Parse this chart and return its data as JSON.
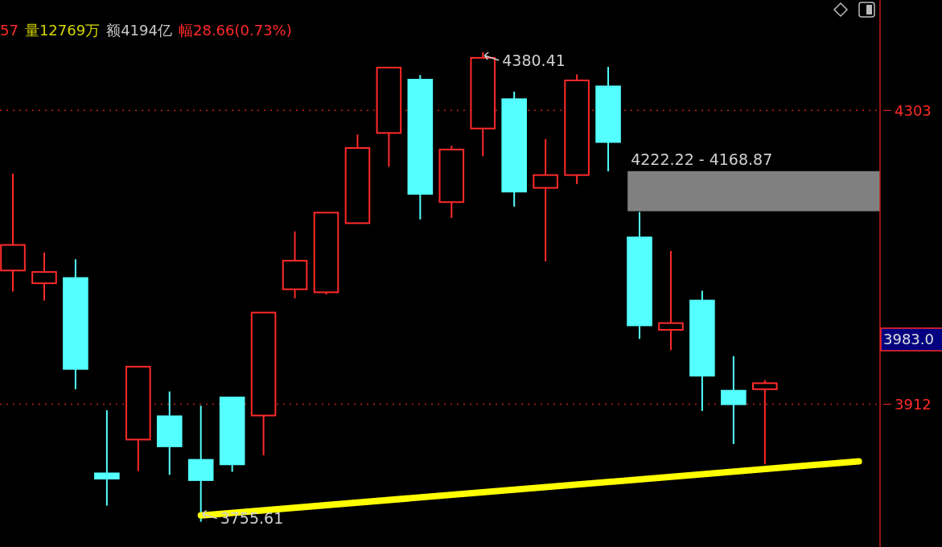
{
  "chart_data": {
    "type": "candlestick",
    "categories": [
      null,
      null,
      null,
      null,
      null,
      null,
      null,
      null,
      null,
      null,
      null,
      null,
      null,
      null,
      null,
      null,
      null,
      null,
      null,
      null,
      null,
      null,
      null,
      null,
      null,
      null,
      null,
      null
    ],
    "ohlc": [
      [
        4090,
        4219,
        4062,
        4124
      ],
      [
        4073,
        4114,
        4050,
        4088
      ],
      [
        4080,
        4105,
        3932,
        3959
      ],
      [
        3820,
        3904,
        3777,
        3813
      ],
      [
        3865,
        3962,
        3823,
        3962
      ],
      [
        3896,
        3929,
        3818,
        3856
      ],
      [
        3838,
        3910,
        3755.61,
        3811
      ],
      [
        3921,
        3921,
        3822,
        3832
      ],
      [
        3897,
        4034,
        3844,
        4034
      ],
      [
        4065,
        4142,
        4053,
        4103
      ],
      [
        4061,
        4167,
        4058,
        4167
      ],
      [
        4153,
        4271,
        4153,
        4253
      ],
      [
        4273,
        4360,
        4228,
        4360
      ],
      [
        4344,
        4350,
        4158,
        4192
      ],
      [
        4181,
        4256,
        4160,
        4251
      ],
      [
        4279,
        4380.41,
        4242,
        4373
      ],
      [
        4318,
        4328,
        4175,
        4195
      ],
      [
        4200,
        4265,
        4102,
        4217
      ],
      [
        4217,
        4351,
        4205,
        4343
      ],
      [
        4335,
        4361,
        4222,
        4261
      ],
      [
        4134,
        4168,
        3999,
        4017
      ],
      [
        4011,
        4116,
        3984,
        4020
      ],
      [
        4050,
        4063,
        3903,
        3950
      ],
      [
        3930,
        3976,
        3859,
        3912
      ],
      [
        3932,
        3944,
        3832,
        3940
      ],
      null,
      null,
      null
    ],
    "colors": [
      "#ff2a2a",
      "#ff2a2a",
      "#54ffff",
      "#54ffff",
      "#ff2a2a",
      "#54ffff",
      "#54ffff",
      "#54ffff",
      "#ff2a2a",
      "#ff2a2a",
      "#ff2a2a",
      "#ff2a2a",
      "#ff2a2a",
      "#54ffff",
      "#ff2a2a",
      "#ff2a2a",
      "#54ffff",
      "#ff2a2a",
      "#ff2a2a",
      "#54ffff",
      "#54ffff",
      "#ff2a2a",
      "#54ffff",
      "#54ffff",
      "#ff2a2a",
      null,
      null,
      null
    ],
    "series": [
      {
        "type": "line",
        "color": "#ffff00",
        "values": [
          null,
          null,
          null,
          null,
          null,
          null,
          3764,
          null,
          null,
          null,
          null,
          null,
          null,
          null,
          null,
          null,
          null,
          null,
          null,
          null,
          null,
          null,
          null,
          null,
          null,
          null,
          null,
          3836
        ]
      }
    ],
    "ylim": [
      3722,
      4450
    ],
    "yticks": [
      4303,
      3912
    ],
    "grid": "y",
    "bands": [
      {
        "axis": "y",
        "from": 4168.87,
        "to": 4222.22,
        "label": "4222.22 - 4168.87",
        "color": "#808080"
      }
    ],
    "annotations": [
      "4380.41",
      "3755.61",
      "57",
      "量12769万",
      "额4194亿",
      "幅28.66(0.73%)",
      "3983.0"
    ]
  }
}
